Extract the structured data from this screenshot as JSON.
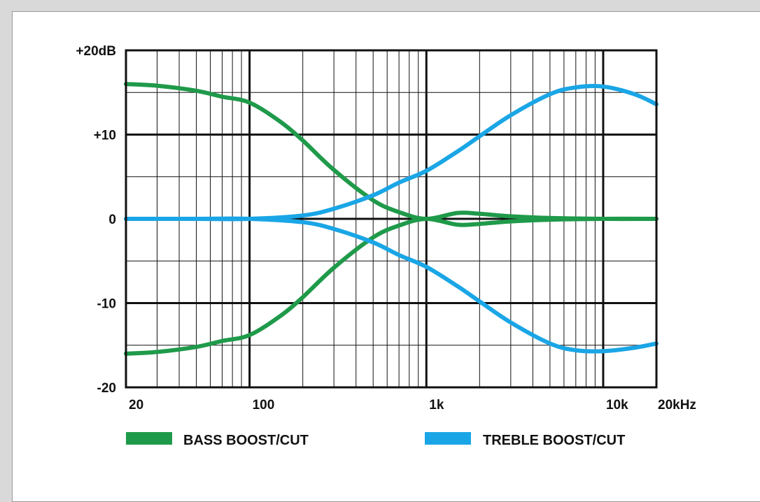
{
  "chart_data": {
    "type": "line",
    "title": "",
    "xlabel": "",
    "ylabel": "",
    "x_scale": "log",
    "xlim": [
      20,
      20000
    ],
    "ylim": [
      -20,
      20
    ],
    "grid": true,
    "x_tick_labels": [
      {
        "value": 20,
        "label": "20"
      },
      {
        "value": 100,
        "label": "100"
      },
      {
        "value": 1000,
        "label": "1k"
      },
      {
        "value": 10000,
        "label": "10k"
      },
      {
        "value": 20000,
        "label": "20kHz"
      }
    ],
    "y_tick_labels": [
      {
        "value": 20,
        "label": "+20dB"
      },
      {
        "value": 10,
        "label": "+10"
      },
      {
        "value": 0,
        "label": "0"
      },
      {
        "value": -10,
        "label": "-10"
      },
      {
        "value": -20,
        "label": "-20"
      }
    ],
    "legend": {
      "placement": "bottom",
      "entries": [
        {
          "label": "BASS BOOST/CUT",
          "color": "#1f9a4a"
        },
        {
          "label": "TREBLE BOOST/CUT",
          "color": "#1aa6e6"
        }
      ]
    },
    "series": [
      {
        "group": "bass",
        "color": "#1f9a4a",
        "x": [
          20,
          30,
          50,
          70,
          100,
          150,
          200,
          300,
          500,
          700,
          1000,
          1500,
          2000,
          3000,
          5000,
          10000,
          20000
        ],
        "y": [
          16,
          15.8,
          15.2,
          14.5,
          13.8,
          11.5,
          9.3,
          5.8,
          2.2,
          0.8,
          0,
          0.7,
          0.6,
          0.3,
          0.1,
          0,
          0
        ]
      },
      {
        "group": "bass",
        "color": "#1f9a4a",
        "x": [
          20,
          30,
          50,
          70,
          100,
          150,
          200,
          300,
          500,
          700,
          1000,
          1500,
          2000,
          3000,
          5000,
          10000,
          20000
        ],
        "y": [
          -16,
          -15.8,
          -15.2,
          -14.5,
          -13.8,
          -11.5,
          -9.3,
          -5.8,
          -2.2,
          -0.8,
          0,
          -0.7,
          -0.6,
          -0.3,
          -0.1,
          0,
          0
        ]
      },
      {
        "group": "treble",
        "color": "#1aa6e6",
        "x": [
          20,
          50,
          100,
          200,
          300,
          500,
          700,
          1000,
          1500,
          2000,
          3000,
          5000,
          7000,
          10000,
          15000,
          20000
        ],
        "y": [
          0,
          0,
          0,
          0.4,
          1.2,
          2.8,
          4.3,
          5.7,
          8.0,
          9.8,
          12.3,
          14.8,
          15.6,
          15.7,
          14.8,
          13.6
        ]
      },
      {
        "group": "treble",
        "color": "#1aa6e6",
        "x": [
          20,
          50,
          100,
          200,
          300,
          500,
          700,
          1000,
          1500,
          2000,
          3000,
          5000,
          7000,
          10000,
          15000,
          20000
        ],
        "y": [
          0,
          0,
          0,
          -0.4,
          -1.2,
          -2.8,
          -4.3,
          -5.7,
          -8.0,
          -9.8,
          -12.3,
          -14.8,
          -15.6,
          -15.7,
          -15.3,
          -14.8
        ]
      }
    ]
  }
}
